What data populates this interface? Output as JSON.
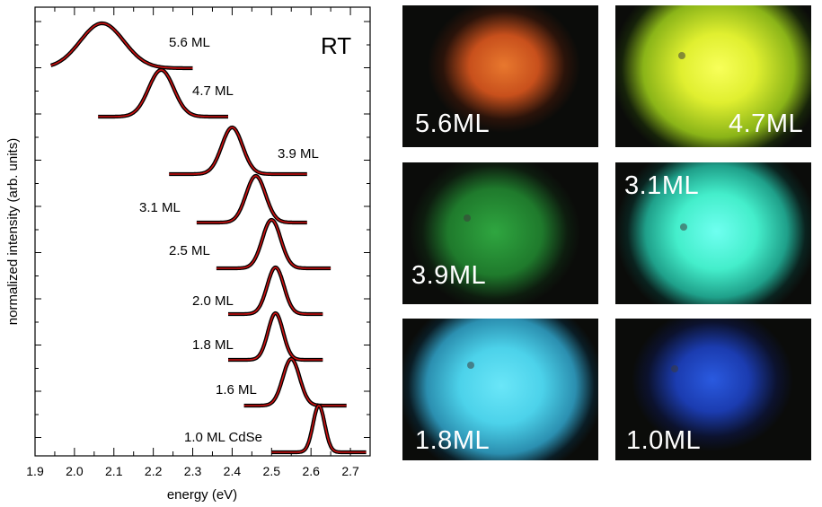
{
  "chart_data": {
    "type": "line",
    "xlabel": "energy (eV)",
    "ylabel": "normalized intensity (arb. units)",
    "xlim": [
      1.9,
      2.75
    ],
    "xticks": [
      "1.9",
      "2.0",
      "2.1",
      "2.2",
      "2.3",
      "2.4",
      "2.5",
      "2.6",
      "2.7"
    ],
    "annotation": "RT",
    "legend": "none",
    "grid": false,
    "colors": {
      "data": "#000000",
      "fit": "#cc1111"
    },
    "series": [
      {
        "name": "5.6 ML",
        "peak_energy": 2.07,
        "fwhm": 0.13,
        "x_range": [
          1.94,
          2.3
        ]
      },
      {
        "name": "4.7 ML",
        "peak_energy": 2.22,
        "fwhm": 0.075,
        "x_range": [
          2.06,
          2.39
        ]
      },
      {
        "name": "3.9 ML",
        "peak_energy": 2.4,
        "fwhm": 0.062,
        "x_range": [
          2.24,
          2.59
        ]
      },
      {
        "name": "3.1 ML",
        "peak_energy": 2.46,
        "fwhm": 0.058,
        "x_range": [
          2.31,
          2.59
        ]
      },
      {
        "name": "2.5 ML",
        "peak_energy": 2.5,
        "fwhm": 0.055,
        "x_range": [
          2.36,
          2.65
        ]
      },
      {
        "name": "2.0 ML",
        "peak_energy": 2.51,
        "fwhm": 0.05,
        "x_range": [
          2.39,
          2.63
        ]
      },
      {
        "name": "1.8 ML",
        "peak_energy": 2.51,
        "fwhm": 0.045,
        "x_range": [
          2.39,
          2.63
        ]
      },
      {
        "name": "1.6 ML",
        "peak_energy": 2.55,
        "fwhm": 0.05,
        "x_range": [
          2.43,
          2.69
        ]
      },
      {
        "name": "1.0 ML CdSe",
        "peak_energy": 2.62,
        "fwhm": 0.035,
        "x_range": [
          2.5,
          2.74
        ]
      }
    ]
  },
  "photos": [
    {
      "label": "5.6ML",
      "glow": "#e8782e"
    },
    {
      "label": "4.7ML",
      "glow": "#e4f23a"
    },
    {
      "label": "3.9ML",
      "glow": "#2a9a3a"
    },
    {
      "label": "3.1ML",
      "glow": "#4ef3d0"
    },
    {
      "label": "1.8ML",
      "glow": "#4fd6ec"
    },
    {
      "label": "1.0ML",
      "glow": "#1e48c8"
    }
  ]
}
